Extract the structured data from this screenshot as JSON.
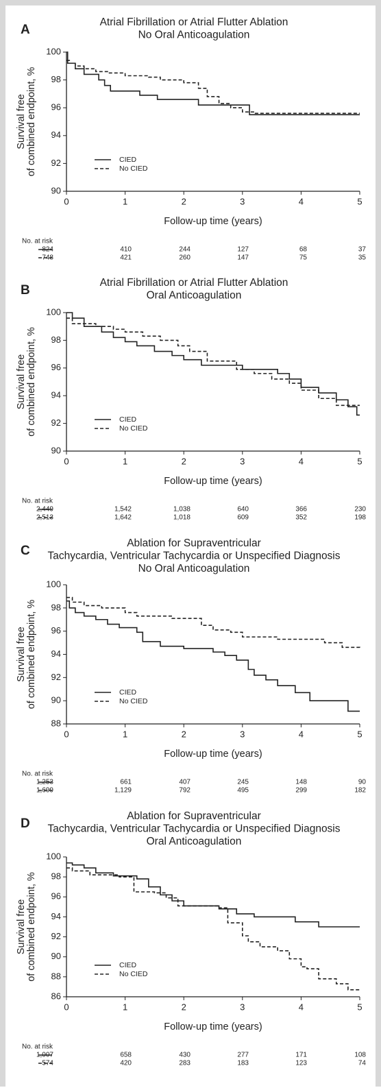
{
  "chart_data": [
    {
      "type": "line",
      "step": true,
      "panel": "A",
      "title": [
        "Atrial Fibrillation or Atrial Flutter Ablation",
        "No Oral Anticoagulation"
      ],
      "x_label": "Follow-up time (years)",
      "y_label": [
        "Survival free",
        "of combined endpoint, %"
      ],
      "xlim": [
        0,
        5
      ],
      "xticks": [
        0,
        1,
        2,
        3,
        4,
        5
      ],
      "ylim": [
        90,
        100
      ],
      "yticks": [
        90,
        92,
        94,
        96,
        98,
        100
      ],
      "risk_label": "No. at risk",
      "series": [
        {
          "name": "CIED",
          "color": "#222222",
          "dash": "solid",
          "x": [
            0,
            0.02,
            0.15,
            0.3,
            0.55,
            0.65,
            0.75,
            1.25,
            1.55,
            2.25,
            3.12,
            5
          ],
          "values": [
            100,
            99.2,
            98.8,
            98.4,
            98.0,
            97.6,
            97.2,
            96.9,
            96.6,
            96.2,
            95.5,
            95.5
          ],
          "at_risk": [
            824,
            410,
            244,
            127,
            68,
            37
          ]
        },
        {
          "name": "No CIED",
          "color": "#222222",
          "dash": "dashed",
          "x": [
            0,
            0.05,
            0.15,
            0.3,
            0.5,
            0.7,
            1.0,
            1.4,
            1.6,
            2.0,
            2.25,
            2.4,
            2.6,
            2.8,
            3.0,
            3.2,
            5
          ],
          "values": [
            99.4,
            99.2,
            99.0,
            98.8,
            98.6,
            98.5,
            98.3,
            98.2,
            98.0,
            97.8,
            97.4,
            96.8,
            96.3,
            96.0,
            95.7,
            95.6,
            95.6
          ],
          "at_risk": [
            748,
            421,
            260,
            147,
            75,
            35
          ]
        }
      ]
    },
    {
      "type": "line",
      "step": true,
      "panel": "B",
      "title": [
        "Atrial Fibrillation or Atrial Flutter Ablation",
        "Oral Anticoagulation"
      ],
      "x_label": "Follow-up time (years)",
      "y_label": [
        "Survival free",
        "of combined endpoint, %"
      ],
      "xlim": [
        0,
        5
      ],
      "xticks": [
        0,
        1,
        2,
        3,
        4,
        5
      ],
      "ylim": [
        90,
        100
      ],
      "yticks": [
        90,
        92,
        94,
        96,
        98,
        100
      ],
      "risk_label": "No. at risk",
      "series": [
        {
          "name": "CIED",
          "color": "#222222",
          "dash": "solid",
          "x": [
            0,
            0.1,
            0.3,
            0.6,
            0.8,
            1.0,
            1.2,
            1.5,
            1.8,
            2.0,
            2.3,
            3.0,
            3.6,
            3.8,
            4.0,
            4.3,
            4.6,
            4.8,
            4.95,
            5
          ],
          "values": [
            100,
            99.6,
            99.0,
            98.6,
            98.2,
            97.9,
            97.6,
            97.2,
            96.9,
            96.6,
            96.2,
            95.9,
            95.6,
            95.2,
            94.6,
            94.2,
            93.7,
            93.2,
            92.6,
            92.6
          ],
          "at_risk": [
            2449,
            1542,
            1038,
            640,
            366,
            230
          ],
          "at_risk_labels": [
            "2,449",
            "1,542",
            "1,038",
            "640",
            "366",
            "230"
          ]
        },
        {
          "name": "No CIED",
          "color": "#222222",
          "dash": "dashed",
          "x": [
            0,
            0.1,
            0.5,
            0.8,
            1.0,
            1.3,
            1.6,
            1.9,
            2.1,
            2.4,
            2.9,
            3.2,
            3.5,
            3.8,
            4.0,
            4.3,
            4.6,
            5
          ],
          "values": [
            99.6,
            99.2,
            99.0,
            98.8,
            98.6,
            98.3,
            98.0,
            97.6,
            97.2,
            96.5,
            95.9,
            95.6,
            95.2,
            94.9,
            94.4,
            93.8,
            93.3,
            93.3
          ],
          "at_risk": [
            2513,
            1642,
            1018,
            609,
            352,
            198
          ],
          "at_risk_labels": [
            "2,513",
            "1,642",
            "1,018",
            "609",
            "352",
            "198"
          ]
        }
      ]
    },
    {
      "type": "line",
      "step": true,
      "panel": "C",
      "title": [
        "Ablation for Supraventricular",
        "Tachycardia, Ventricular Tachycardia or Unspecified Diagnosis",
        "No Oral Anticoagulation"
      ],
      "x_label": "Follow-up time (years)",
      "y_label": [
        "Survival free",
        "of combined endpoint, %"
      ],
      "xlim": [
        0,
        5
      ],
      "xticks": [
        0,
        1,
        2,
        3,
        4,
        5
      ],
      "ylim": [
        88,
        100
      ],
      "yticks": [
        88,
        90,
        92,
        94,
        96,
        98,
        100
      ],
      "risk_label": "No. at risk",
      "series": [
        {
          "name": "CIED",
          "color": "#222222",
          "dash": "solid",
          "x": [
            0,
            0.05,
            0.15,
            0.3,
            0.5,
            0.7,
            0.9,
            1.2,
            1.3,
            1.6,
            2.0,
            2.5,
            2.7,
            2.9,
            3.1,
            3.2,
            3.4,
            3.6,
            3.9,
            4.15,
            4.8,
            5
          ],
          "values": [
            98.6,
            98.0,
            97.6,
            97.3,
            97.0,
            96.6,
            96.3,
            95.9,
            95.1,
            94.7,
            94.5,
            94.2,
            93.9,
            93.5,
            92.7,
            92.2,
            91.8,
            91.3,
            90.7,
            90.0,
            89.1,
            89.1
          ],
          "at_risk": [
            1253,
            661,
            407,
            245,
            148,
            90
          ],
          "at_risk_labels": [
            "1,253",
            "661",
            "407",
            "245",
            "148",
            "90"
          ]
        },
        {
          "name": "No CIED",
          "color": "#222222",
          "dash": "dashed",
          "x": [
            0,
            0.1,
            0.3,
            0.6,
            1.0,
            1.2,
            1.8,
            2.3,
            2.5,
            2.8,
            3.0,
            3.6,
            4.4,
            4.7,
            5
          ],
          "values": [
            98.9,
            98.5,
            98.2,
            98.0,
            97.6,
            97.3,
            97.1,
            96.5,
            96.1,
            95.9,
            95.5,
            95.3,
            95.0,
            94.6,
            94.5
          ],
          "at_risk": [
            1699,
            1129,
            792,
            495,
            299,
            182
          ],
          "at_risk_labels": [
            "1,699",
            "1,129",
            "792",
            "495",
            "299",
            "182"
          ]
        }
      ]
    },
    {
      "type": "line",
      "step": true,
      "panel": "D",
      "title": [
        "Ablation for Supraventricular",
        "Tachycardia, Ventricular Tachycardia or Unspecified Diagnosis",
        "Oral Anticoagulation"
      ],
      "x_label": "Follow-up time (years)",
      "y_label": [
        "Survival free",
        "of combined endpoint, %"
      ],
      "xlim": [
        0,
        5
      ],
      "xticks": [
        0,
        1,
        2,
        3,
        4,
        5
      ],
      "ylim": [
        86,
        100
      ],
      "yticks": [
        86,
        88,
        90,
        92,
        94,
        96,
        98,
        100
      ],
      "risk_label": "No. at risk",
      "series": [
        {
          "name": "CIED",
          "color": "#222222",
          "dash": "solid",
          "x": [
            0,
            0.1,
            0.3,
            0.5,
            0.8,
            1.2,
            1.4,
            1.6,
            1.8,
            2.0,
            2.6,
            2.9,
            3.2,
            3.9,
            4.3,
            5
          ],
          "values": [
            99.4,
            99.2,
            98.9,
            98.4,
            98.1,
            97.8,
            97.0,
            96.2,
            95.6,
            95.1,
            94.8,
            94.3,
            94.0,
            93.5,
            93.0,
            93.0
          ],
          "at_risk": [
            1007,
            658,
            430,
            277,
            171,
            108
          ],
          "at_risk_labels": [
            "1,007",
            "658",
            "430",
            "277",
            "171",
            "108"
          ]
        },
        {
          "name": "No CIED",
          "color": "#222222",
          "dash": "dashed",
          "x": [
            0,
            0.1,
            0.4,
            0.9,
            1.15,
            1.5,
            1.7,
            1.9,
            2.6,
            2.75,
            3.0,
            3.1,
            3.3,
            3.6,
            3.8,
            4.0,
            4.1,
            4.3,
            4.6,
            4.8,
            5
          ],
          "values": [
            98.9,
            98.6,
            98.2,
            98.0,
            96.5,
            96.4,
            95.9,
            95.1,
            94.9,
            93.4,
            92.1,
            91.5,
            91.0,
            90.6,
            89.8,
            89.0,
            88.8,
            87.8,
            87.3,
            86.7,
            86.7
          ],
          "at_risk": [
            574,
            420,
            283,
            183,
            123,
            74
          ]
        }
      ]
    }
  ]
}
